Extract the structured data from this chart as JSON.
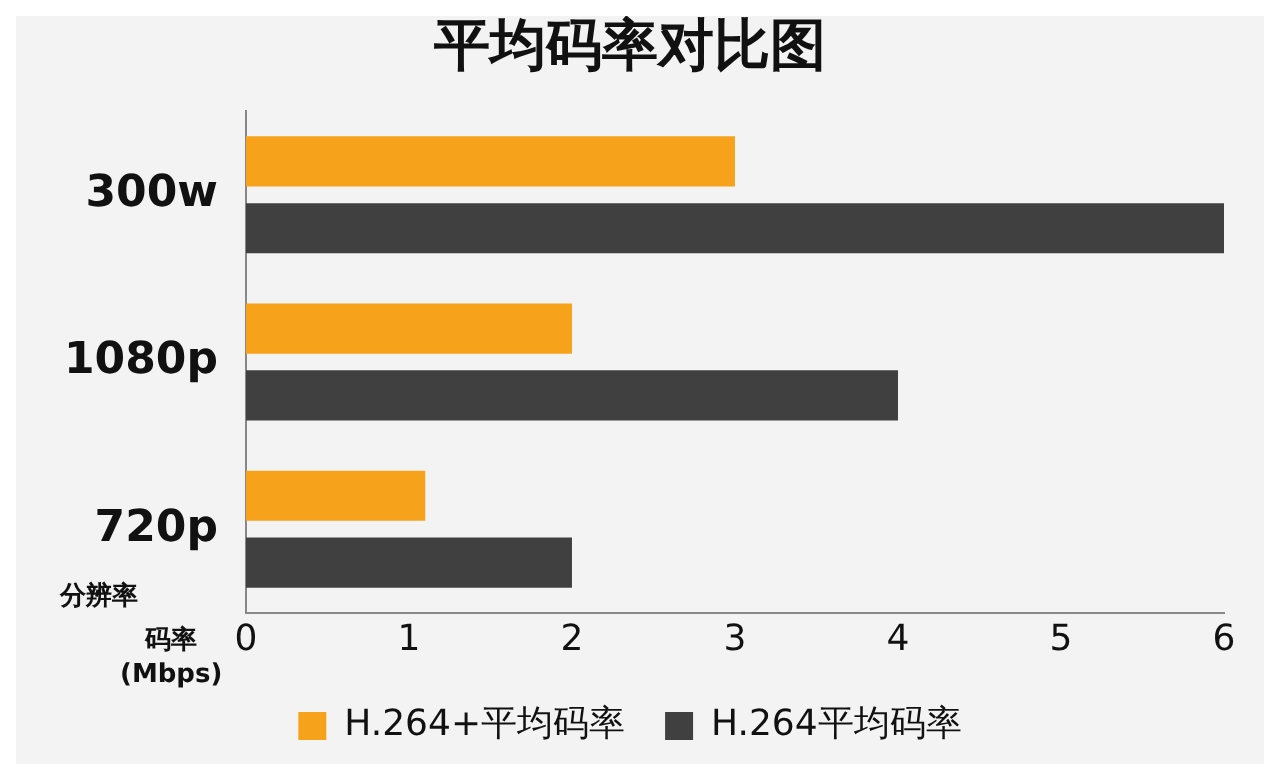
{
  "chart_data": {
    "type": "bar",
    "orientation": "horizontal",
    "title": "平均码率对比图",
    "xlabel": "码率\n(Mbps)",
    "ylabel": "分辨率",
    "categories": [
      "300w",
      "1080p",
      "720p"
    ],
    "series": [
      {
        "name": "H.264+平均码率",
        "color": "#f7a21b",
        "values": [
          3,
          2,
          1.1
        ]
      },
      {
        "name": "H.264平均码率",
        "color": "#404040",
        "values": [
          6,
          4,
          2
        ]
      }
    ],
    "xlim": [
      0,
      6
    ],
    "xticks": [
      0,
      1,
      2,
      3,
      4,
      5,
      6
    ],
    "grid": false,
    "legend": "bottom"
  }
}
